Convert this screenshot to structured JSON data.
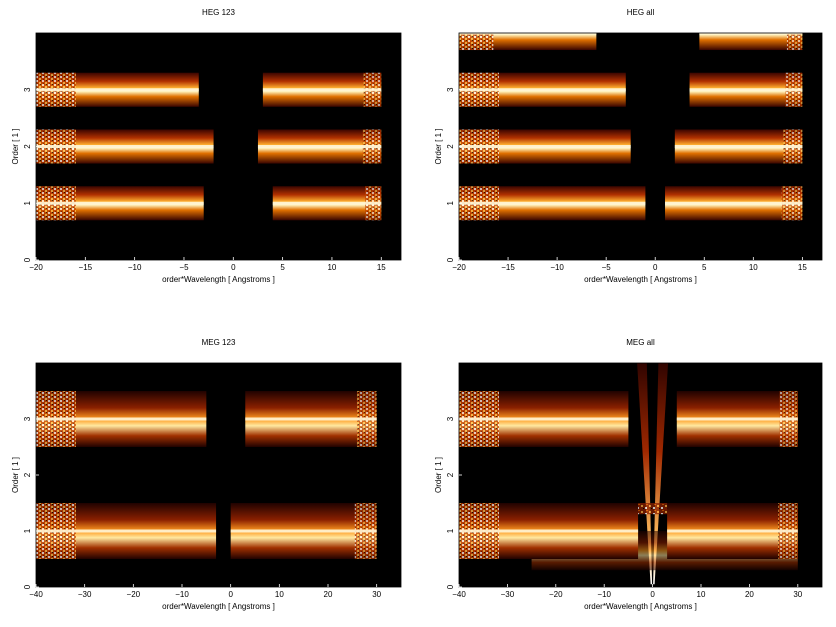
{
  "chart_data": [
    {
      "type": "heatmap",
      "title": "HEG 123",
      "xlabel": "order*Wavelength [ Angstroms ]",
      "ylabel": "Order [ 1 ]",
      "xlim": [
        -20,
        17
      ],
      "ylim": [
        0,
        4
      ],
      "xticks": [
        -20,
        -15,
        -10,
        -5,
        0,
        5,
        10,
        15
      ],
      "yticks": [
        0,
        1,
        2,
        3
      ],
      "colormap": [
        "#000000",
        "#5a0a00",
        "#a02800",
        "#e06000",
        "#ffa000",
        "#ffe070",
        "#ffffff"
      ],
      "bands": [
        {
          "order": 1,
          "x": [
            -20,
            -3
          ],
          "x_pos": [
            4,
            15
          ]
        },
        {
          "order": 2,
          "x": [
            -20,
            -2
          ],
          "x_pos": [
            2.5,
            15
          ]
        },
        {
          "order": 3,
          "x": [
            -20,
            -3.5
          ],
          "x_pos": [
            3,
            15
          ]
        }
      ]
    },
    {
      "type": "heatmap",
      "title": "HEG all",
      "xlabel": "order*Wavelength [ Angstroms ]",
      "ylabel": "Order [ 1 ]",
      "xlim": [
        -20,
        17
      ],
      "ylim": [
        0,
        4
      ],
      "xticks": [
        -20,
        -15,
        -10,
        -5,
        0,
        5,
        10,
        15
      ],
      "yticks": [
        0,
        1,
        2,
        3
      ],
      "colormap": [
        "#000000",
        "#5a0a00",
        "#a02800",
        "#e06000",
        "#ffa000",
        "#ffe070",
        "#ffffff"
      ],
      "bands": [
        {
          "order": 1,
          "x": [
            -20,
            -1
          ],
          "x_pos": [
            1,
            15
          ]
        },
        {
          "order": 2,
          "x": [
            -20,
            -2.5
          ],
          "x_pos": [
            2,
            15
          ]
        },
        {
          "order": 3,
          "x": [
            -20,
            -3
          ],
          "x_pos": [
            3.5,
            15
          ]
        },
        {
          "order": 4,
          "x": [
            -20,
            -6
          ],
          "x_pos": [
            4.5,
            15
          ]
        }
      ]
    },
    {
      "type": "heatmap",
      "title": "MEG 123",
      "xlabel": "order*Wavelength [ Angstroms ]",
      "ylabel": "Order [ 1 ]",
      "xlim": [
        -40,
        35
      ],
      "ylim": [
        0,
        4
      ],
      "xticks": [
        -40,
        -30,
        -20,
        -10,
        0,
        10,
        20,
        30
      ],
      "yticks": [
        0,
        1,
        2,
        3
      ],
      "colormap": [
        "#000000",
        "#5a0a00",
        "#a02800",
        "#e06000",
        "#ffa000",
        "#ffe070",
        "#ffffff"
      ],
      "bands": [
        {
          "order": 1,
          "x": [
            -40,
            -3
          ],
          "x_pos": [
            0,
            30
          ]
        },
        {
          "order": 3,
          "x": [
            -40,
            -5
          ],
          "x_pos": [
            3,
            30
          ]
        }
      ]
    },
    {
      "type": "heatmap",
      "title": "MEG all",
      "xlabel": "order*Wavelength [ Angstroms ]",
      "ylabel": "Order [ 1 ]",
      "xlim": [
        -40,
        35
      ],
      "ylim": [
        0,
        4
      ],
      "xticks": [
        -40,
        -30,
        -20,
        -10,
        0,
        10,
        20,
        30
      ],
      "yticks": [
        0,
        1,
        2,
        3
      ],
      "colormap": [
        "#000000",
        "#5a0a00",
        "#a02800",
        "#e06000",
        "#ffa000",
        "#ffe070",
        "#ffffff"
      ],
      "bands": [
        {
          "order": 1,
          "x": [
            -40,
            -3
          ],
          "x_pos": [
            3,
            30
          ]
        },
        {
          "order": 3,
          "x": [
            -40,
            -5
          ],
          "x_pos": [
            5,
            30
          ]
        }
      ]
    }
  ]
}
